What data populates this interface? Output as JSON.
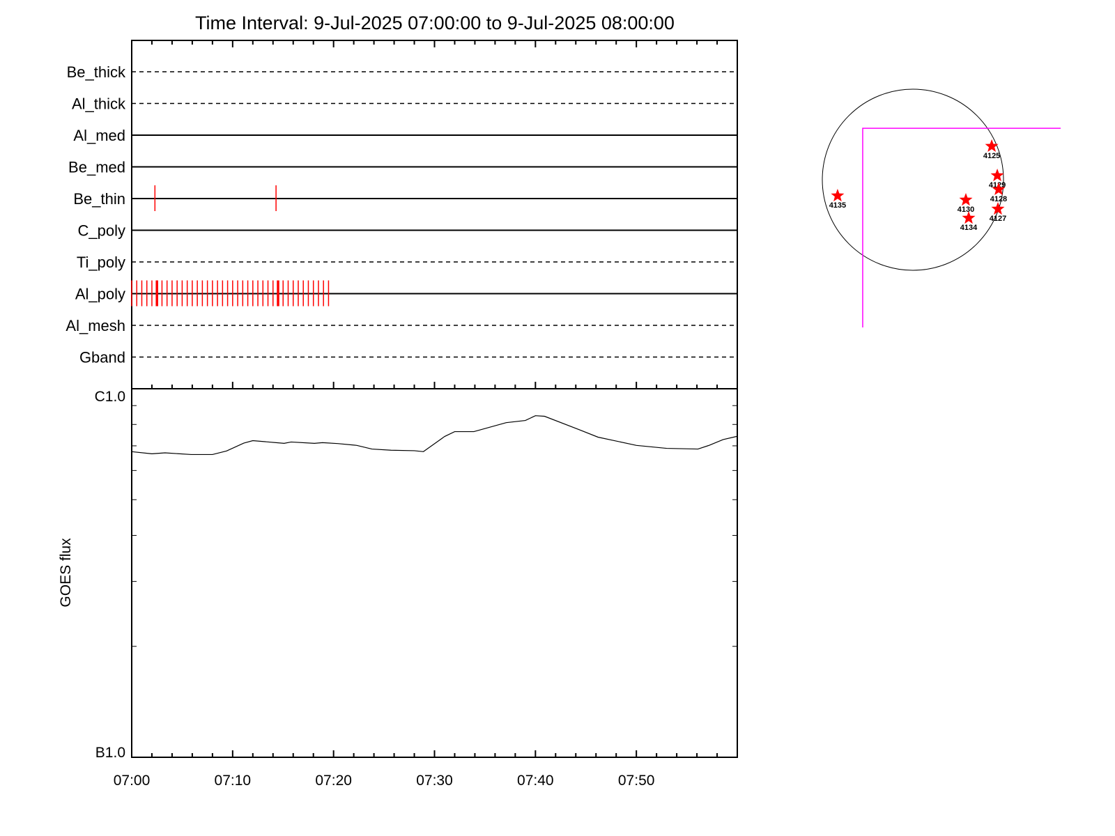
{
  "chart_data": [
    {
      "type": "event-raster",
      "title": "Time Interval:  9-Jul-2025 07:00:00 to  9-Jul-2025 08:00:00",
      "x_range_minutes_after_0700": [
        0,
        60
      ],
      "rows": [
        {
          "label": "Be_thick",
          "line": "dashed",
          "events": []
        },
        {
          "label": "Al_thick",
          "line": "dashed",
          "events": []
        },
        {
          "label": "Al_med",
          "line": "solid",
          "events": []
        },
        {
          "label": "Be_med",
          "line": "solid",
          "events": []
        },
        {
          "label": "Be_thin",
          "line": "solid",
          "events": [
            2.3,
            14.3
          ]
        },
        {
          "label": "C_poly",
          "line": "solid",
          "events": []
        },
        {
          "label": "Ti_poly",
          "line": "dashed",
          "events": []
        },
        {
          "label": "Al_poly",
          "line": "solid",
          "events_every_half_minute_from": 0,
          "events_until": 19.5,
          "emphasized_events": [
            2.5,
            14.5
          ]
        },
        {
          "label": "Al_mesh",
          "line": "dashed",
          "events": []
        },
        {
          "label": "Gband",
          "line": "dashed",
          "events": []
        }
      ],
      "event_color": "#ff0000"
    },
    {
      "type": "line",
      "ylabel": "GOES flux",
      "y_scale": "log",
      "ylim": [
        1e-07,
        1e-06
      ],
      "y_tick_labels": [
        {
          "value": 1e-06,
          "label": "C1.0"
        },
        {
          "value": 1e-07,
          "label": "B1.0"
        }
      ],
      "x_tick_labels": [
        "07:00",
        "07:10",
        "07:20",
        "07:30",
        "07:40",
        "07:50"
      ],
      "x_minutes": [
        0,
        2,
        3.3,
        5.9,
        8.0,
        9.4,
        11.1,
        12.0,
        15.1,
        15.8,
        18.1,
        18.9,
        20.4,
        22.3,
        23.8,
        25.7,
        28.0,
        28.9,
        31.0,
        32.0,
        33.9,
        37.1,
        39.0,
        40.0,
        40.9,
        44.3,
        46.2,
        50.0,
        53.0,
        56.1,
        57.2,
        58.6,
        60
      ],
      "y": [
        6.75e-07,
        6.66e-07,
        6.7e-07,
        6.63e-07,
        6.63e-07,
        6.78e-07,
        7.12e-07,
        7.23e-07,
        7.11e-07,
        7.17e-07,
        7.11e-07,
        7.14e-07,
        7.1e-07,
        7.02e-07,
        6.86e-07,
        6.81e-07,
        6.79e-07,
        6.75e-07,
        7.42e-07,
        7.65e-07,
        7.65e-07,
        8.09e-07,
        8.2e-07,
        8.45e-07,
        8.42e-07,
        7.75e-07,
        7.39e-07,
        7.02e-07,
        6.89e-07,
        6.86e-07,
        7.02e-07,
        7.28e-07,
        7.43e-07
      ],
      "line_color": "#000000"
    },
    {
      "type": "scatter",
      "description_units": "arcsec from solar disk center (x west, y north)",
      "solar_radius_arcsec": 960,
      "marker": "star",
      "marker_color": "#ff0000",
      "points": [
        {
          "label": "4125",
          "x": 835,
          "y": 355
        },
        {
          "label": "4129",
          "x": 894,
          "y": 44
        },
        {
          "label": "4128",
          "x": 908,
          "y": -103
        },
        {
          "label": "4127",
          "x": 901,
          "y": -310
        },
        {
          "label": "4130",
          "x": 561,
          "y": -214
        },
        {
          "label": "4134",
          "x": 591,
          "y": -406
        },
        {
          "label": "4135",
          "x": -798,
          "y": -170
        }
      ],
      "fov_corner_arcsec": {
        "x": -532,
        "y": 546
      },
      "fov_color": "#ff00ff"
    }
  ]
}
